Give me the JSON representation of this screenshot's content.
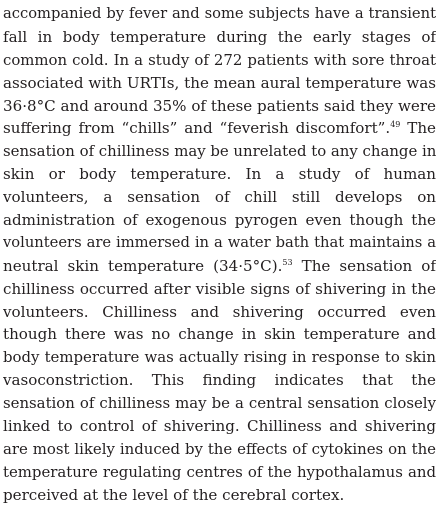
{
  "paragraph": {
    "lines": [
      {
        "text": "accompanied by fever and some subjects have a transient"
      },
      {
        "text": "fall in body temperature during the early stages of"
      },
      {
        "text": "common cold. In a study of 272 patients with sore throat"
      },
      {
        "text": "associated with URTIs, the mean aural temperature was"
      },
      {
        "text": "36·8°C and around 35% of these patients said they were"
      },
      {
        "text": "suffering from “chills” and “feverish discomfort”.",
        "ref": "49",
        "after": " The"
      },
      {
        "text": "sensation of chilliness may be unrelated to any change in"
      },
      {
        "text": "skin or body temperature. In a study of human"
      },
      {
        "text": "volunteers, a sensation of chill still develops on"
      },
      {
        "text": "administration of exogenous pyrogen even though the"
      },
      {
        "text": "volunteers are immersed in a water bath that maintains a"
      },
      {
        "text": "neutral skin temperature (34·5°C).",
        "ref": "53",
        "after": " The sensation of"
      },
      {
        "text": "chilliness occurred after visible signs of shivering in the"
      },
      {
        "text": "volunteers. Chilliness and shivering occurred even"
      },
      {
        "text": "though there was no change in skin temperature and"
      },
      {
        "text": "body temperature was actually rising in response to skin"
      },
      {
        "text": "vasoconstriction. This finding indicates that the"
      },
      {
        "text": "sensation of chilliness may be a central sensation closely"
      },
      {
        "text": "linked to control of shivering. Chilliness and shivering"
      },
      {
        "text": "are most likely induced by the effects of cytokines on the"
      },
      {
        "text": "temperature regulating centres of the hypothalamus and"
      },
      {
        "text": "perceived at the level of the cerebral cortex."
      }
    ]
  }
}
